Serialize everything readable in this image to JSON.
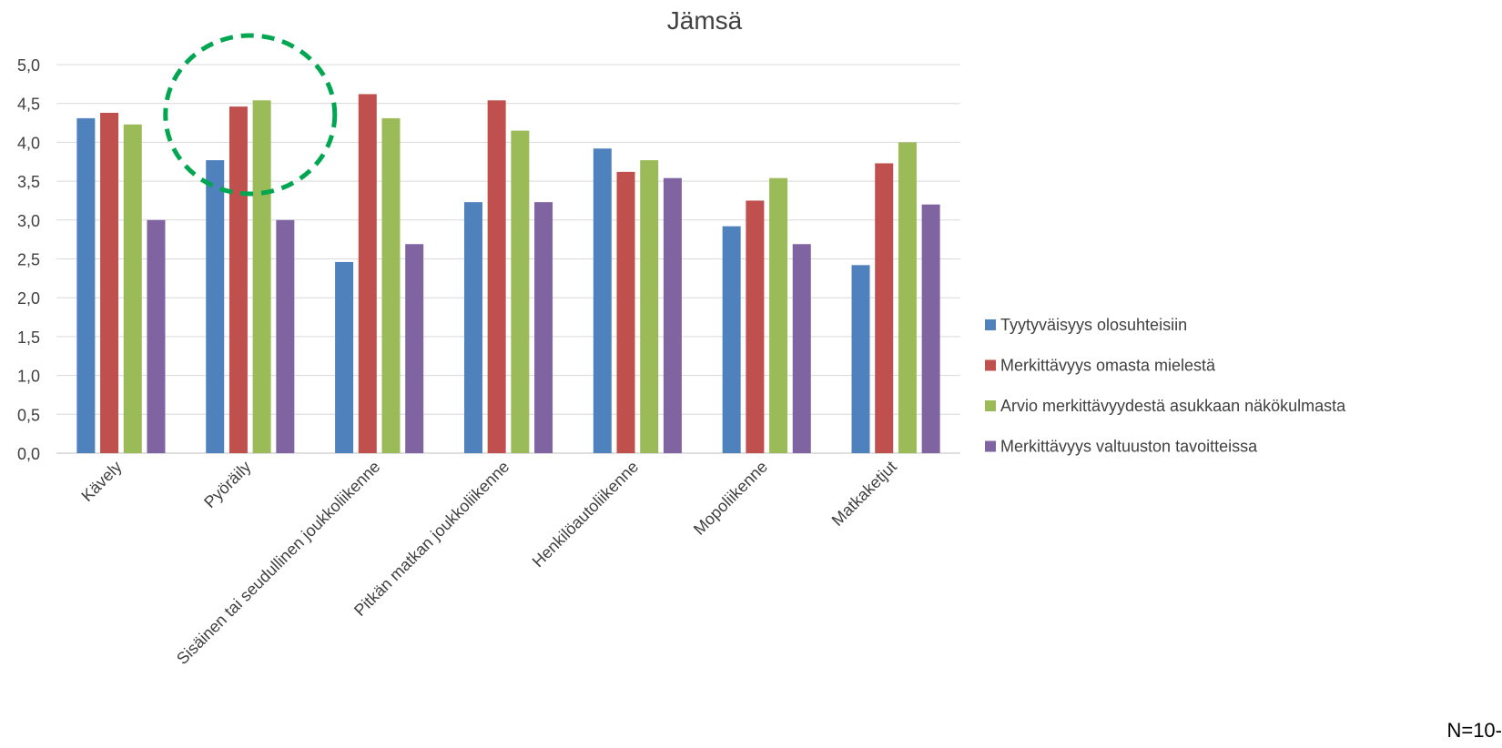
{
  "chart_data": {
    "type": "bar",
    "title": "Jämsä",
    "xlabel": "",
    "ylabel": "",
    "ylim": [
      0,
      5
    ],
    "yticks": [
      "0,0",
      "0,5",
      "1,0",
      "1,5",
      "2,0",
      "2,5",
      "3,0",
      "3,5",
      "4,0",
      "4,5",
      "5,0"
    ],
    "grid": true,
    "legend_position": "right",
    "categories": [
      "Kävely",
      "Pyöräily",
      "Sisäinen tai seudullinen joukkoliikenne",
      "Pitkän matkan joukkoliikenne",
      "Henkilöautoliikenne",
      "Mopoliikenne",
      "Matkaketjut"
    ],
    "series": [
      {
        "name": "Tyytyväisyys olosuhteisiin",
        "color": "#4F81BD",
        "values": [
          4.31,
          3.77,
          2.46,
          3.23,
          3.92,
          2.92,
          2.42
        ]
      },
      {
        "name": "Merkittävyys omasta mielestä",
        "color": "#C0504D",
        "values": [
          4.38,
          4.46,
          4.62,
          4.54,
          3.62,
          3.25,
          3.73
        ]
      },
      {
        "name": "Arvio merkittävyydestä asukkaan näkökulmasta",
        "color": "#9BBB59",
        "values": [
          4.23,
          4.54,
          4.31,
          4.15,
          3.77,
          3.54,
          4.0
        ]
      },
      {
        "name": "Merkittävyys valtuuston tavoitteissa",
        "color": "#8064A2",
        "values": [
          3.0,
          3.0,
          2.69,
          3.23,
          3.54,
          2.69,
          3.2
        ]
      }
    ],
    "annotation": {
      "shape": "dashed-ellipse",
      "color": "#00A650",
      "highlights": "Pyöräily"
    }
  },
  "footnote": "N=10-"
}
